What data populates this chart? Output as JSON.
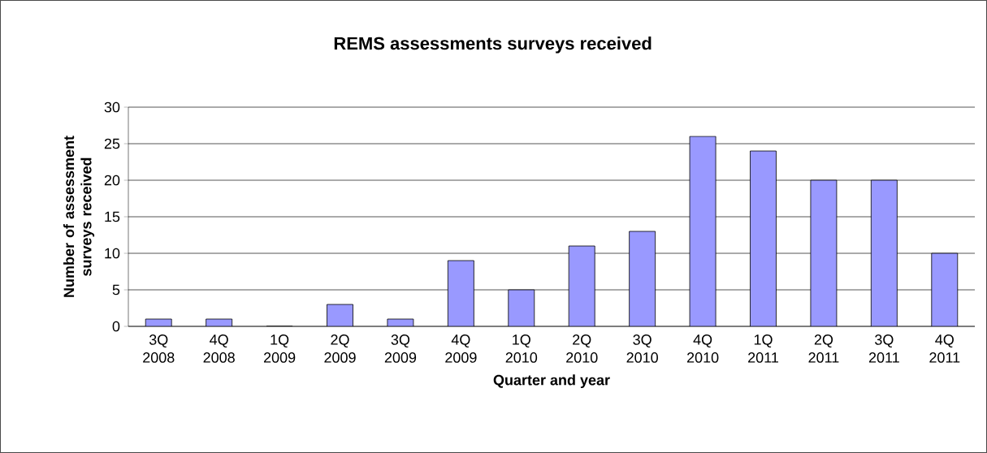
{
  "chart_data": {
    "type": "bar",
    "title": "REMS assessments surveys received",
    "xlabel": "Quarter and year",
    "ylabel": "Number of assessment surveys received",
    "categories": [
      "3Q 2008",
      "4Q 2008",
      "1Q 2009",
      "2Q 2009",
      "3Q 2009",
      "4Q 2009",
      "1Q 2010",
      "2Q 2010",
      "3Q 2010",
      "4Q 2010",
      "1Q 2011",
      "2Q 2011",
      "3Q 2011",
      "4Q 2011"
    ],
    "values": [
      1,
      1,
      0,
      3,
      1,
      9,
      5,
      11,
      13,
      26,
      24,
      20,
      20,
      10
    ],
    "color": "#9999ff",
    "ylim": [
      0,
      30
    ],
    "yticks": [
      0,
      5,
      10,
      15,
      20,
      25,
      30
    ],
    "grid": "y"
  }
}
